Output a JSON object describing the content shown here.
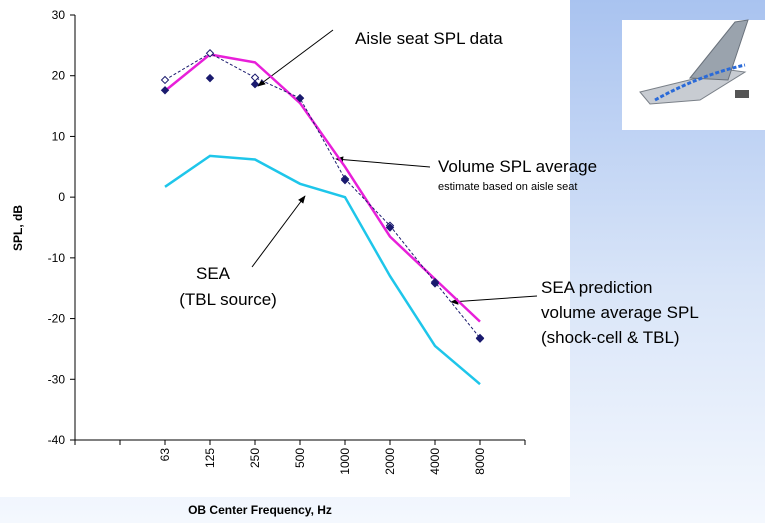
{
  "chart_data": {
    "type": "line",
    "categories": [
      "63",
      "125",
      "250",
      "500",
      "1000",
      "2000",
      "4000",
      "8000"
    ],
    "xlabel": "OB Center Frequency, Hz",
    "ylabel": "SPL, dB",
    "ylim": [
      -40,
      30
    ],
    "yticks": [
      30,
      20,
      10,
      0,
      -10,
      -20,
      -30,
      -40
    ],
    "grid": false,
    "series": [
      {
        "color": "#e81fd9",
        "style": "solid",
        "marker": "none",
        "values": [
          17.5,
          23.5,
          22.2,
          15.5,
          5,
          -6.5,
          -13.5,
          -20.5
        ]
      },
      {
        "color": "#1ec6ea",
        "style": "solid",
        "marker": "none",
        "values": [
          1.7,
          6.8,
          6.2,
          2.2,
          0,
          -13,
          -24.5,
          -30.8
        ]
      },
      {
        "color": "#1a1a6e",
        "style": "dashed",
        "marker": "open-diamond",
        "values": [
          19.3,
          23.7,
          19.7,
          16.3,
          3,
          -4.7,
          -14,
          -23.2
        ]
      },
      {
        "color": "#1a1a6e",
        "style": "none",
        "marker": "diamond",
        "values": [
          17.6,
          19.6,
          18.6,
          16.3,
          2.8,
          -5,
          -14.2,
          -23.3
        ]
      }
    ],
    "annotations": [
      "Aisle seat SPL data",
      "Volume SPL average",
      "estimate based on aisle seat",
      "SEA",
      "(TBL source)",
      "SEA prediction",
      "volume average SPL",
      "(shock-cell & TBL)"
    ]
  }
}
